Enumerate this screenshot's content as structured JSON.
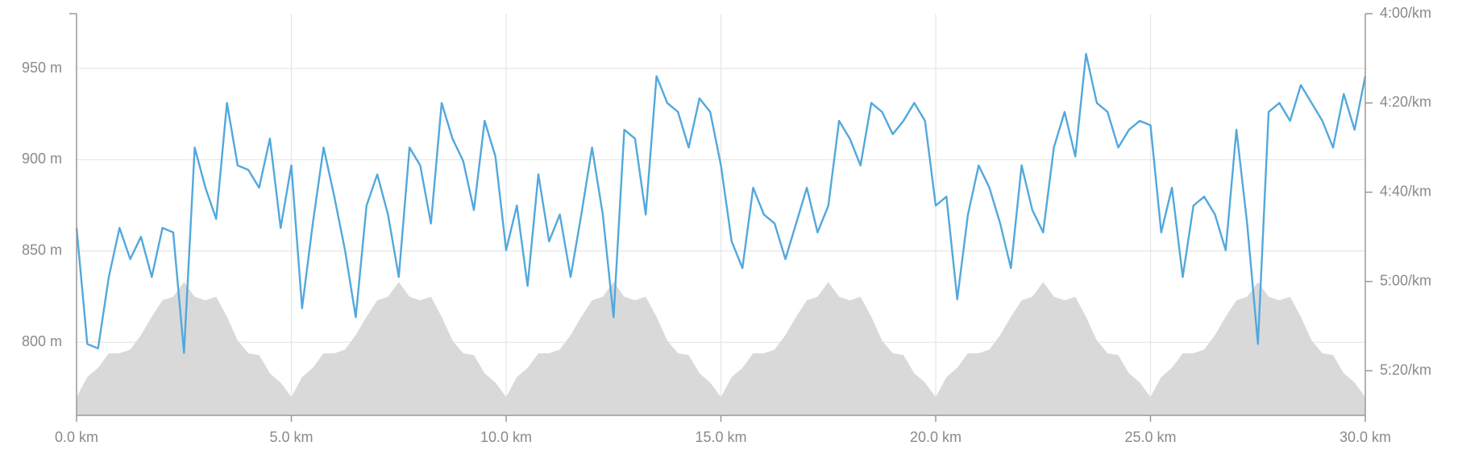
{
  "chart_data": {
    "type": "area-line",
    "x": [
      0,
      0.25,
      0.5,
      0.75,
      1,
      1.25,
      1.5,
      1.75,
      2,
      2.25,
      2.5,
      2.75,
      3,
      3.25,
      3.5,
      3.75,
      4,
      4.25,
      4.5,
      4.75,
      5,
      5.25,
      5.5,
      5.75,
      6,
      6.25,
      6.5,
      6.75,
      7,
      7.25,
      7.5,
      7.75,
      8,
      8.25,
      8.5,
      8.75,
      9,
      9.25,
      9.5,
      9.75,
      10,
      10.25,
      10.5,
      10.75,
      11,
      11.25,
      11.5,
      11.75,
      12,
      12.25,
      12.5,
      12.75,
      13,
      13.25,
      13.5,
      13.75,
      14,
      14.25,
      14.5,
      14.75,
      15,
      15.25,
      15.5,
      15.75,
      16,
      16.25,
      16.5,
      16.75,
      17,
      17.25,
      17.5,
      17.75,
      18,
      18.25,
      18.5,
      18.75,
      19,
      19.25,
      19.5,
      19.75,
      20,
      20.25,
      20.5,
      20.75,
      21,
      21.25,
      21.5,
      21.75,
      22,
      22.25,
      22.5,
      22.75,
      23,
      23.25,
      23.5,
      23.75,
      24,
      24.25,
      24.5,
      24.75,
      25,
      25.25,
      25.5,
      25.75,
      26,
      26.25,
      26.5,
      26.75,
      27,
      27.25,
      27.5,
      27.75,
      28,
      28.25,
      28.5,
      28.75,
      29,
      29.25,
      29.5,
      29.75,
      30
    ],
    "series": [
      {
        "color": "#d9d9d9",
        "axis": "y",
        "style": "area",
        "values": [
          770,
          781,
          786,
          794,
          794,
          796,
          804,
          814,
          823,
          825,
          833,
          825,
          823,
          825,
          814,
          801,
          794,
          793,
          783,
          778,
          770,
          781,
          786,
          794,
          794,
          796,
          804,
          814,
          823,
          825,
          833,
          825,
          823,
          825,
          814,
          801,
          794,
          793,
          783,
          778,
          770,
          781,
          786,
          794,
          794,
          796,
          804,
          814,
          823,
          825,
          833,
          825,
          823,
          825,
          814,
          801,
          794,
          793,
          783,
          778,
          770,
          781,
          786,
          794,
          794,
          796,
          804,
          814,
          823,
          825,
          833,
          825,
          823,
          825,
          814,
          801,
          794,
          793,
          783,
          778,
          770,
          781,
          786,
          794,
          794,
          796,
          804,
          814,
          823,
          825,
          833,
          825,
          823,
          825,
          814,
          801,
          794,
          793,
          783,
          778,
          770,
          781,
          786,
          794,
          794,
          796,
          804,
          814,
          823,
          825,
          833,
          825,
          823,
          825,
          814,
          801,
          794,
          793,
          783,
          778,
          770
        ]
      },
      {
        "color": "#52a8dd",
        "axis": "y2",
        "style": "line",
        "values": [
          288,
          314,
          315,
          299,
          288,
          295,
          290,
          299,
          288,
          289,
          316,
          270,
          279,
          286,
          260,
          274,
          275,
          279,
          268,
          288,
          274,
          306,
          287,
          270,
          281,
          293,
          308,
          283,
          276,
          285,
          299,
          270,
          274,
          287,
          260,
          268,
          273,
          284,
          264,
          272,
          293,
          283,
          301,
          276,
          291,
          285,
          299,
          285,
          270,
          285,
          308,
          266,
          268,
          285,
          254,
          260,
          262,
          270,
          259,
          262,
          274,
          291,
          297,
          279,
          285,
          287,
          295,
          287,
          279,
          289,
          283,
          264,
          268,
          274,
          260,
          262,
          267,
          264,
          260,
          264,
          283,
          281,
          304,
          285,
          274,
          279,
          287,
          297,
          274,
          284,
          289,
          270,
          262,
          272,
          249,
          260,
          262,
          270,
          266,
          264,
          265,
          289,
          279,
          299,
          283,
          281,
          285,
          293,
          266,
          287,
          314,
          262,
          260,
          264,
          256,
          260,
          264,
          270,
          258,
          266,
          254
        ]
      }
    ],
    "xlim": [
      0,
      30
    ],
    "xticks": [
      {
        "value": 0,
        "label": "0.0 km"
      },
      {
        "value": 5,
        "label": "5.0 km"
      },
      {
        "value": 10,
        "label": "10.0 km"
      },
      {
        "value": 15,
        "label": "15.0 km"
      },
      {
        "value": 20,
        "label": "20.0 km"
      },
      {
        "value": 25,
        "label": "25.0 km"
      },
      {
        "value": 30,
        "label": "30.0 km"
      }
    ],
    "ylim": [
      760,
      980
    ],
    "yticks": [
      {
        "value": 800,
        "label": "800 m"
      },
      {
        "value": 850,
        "label": "850 m"
      },
      {
        "value": 900,
        "label": "900 m"
      },
      {
        "value": 950,
        "label": "950 m"
      }
    ],
    "y2lim": [
      330,
      240
    ],
    "y2ticks": [
      {
        "value": 240,
        "label": "4:00/km"
      },
      {
        "value": 260,
        "label": "4:20/km"
      },
      {
        "value": 280,
        "label": "4:40/km"
      },
      {
        "value": 300,
        "label": "5:00/km"
      },
      {
        "value": 320,
        "label": "5:20/km"
      }
    ],
    "grid": true
  }
}
